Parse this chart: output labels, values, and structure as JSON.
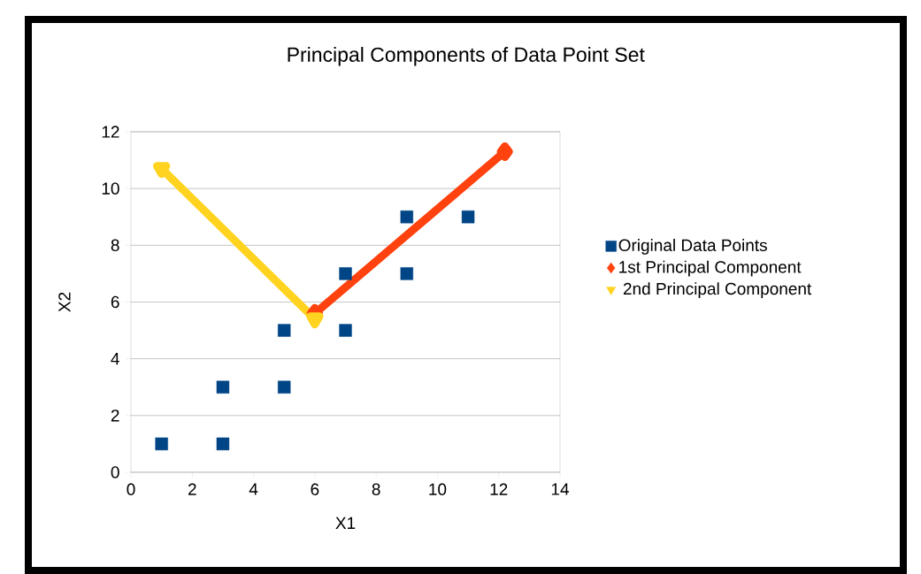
{
  "chart_data": {
    "type": "scatter",
    "title": "Principal Components of Data Point Set",
    "xlabel": "X1",
    "ylabel": "X2",
    "series": [
      {
        "name": "Original Data Points",
        "marker": "square",
        "color": "#004586",
        "x": [
          1,
          3,
          3,
          5,
          5,
          7,
          7,
          9,
          9,
          11
        ],
        "values": [
          1,
          1,
          3,
          3,
          5,
          5,
          7,
          7,
          9,
          9
        ]
      },
      {
        "name": "1st Principal Component",
        "type": "line",
        "marker": "diamond",
        "color": "#ff420e",
        "x": [
          6.0,
          12.2
        ],
        "values": [
          5.6,
          11.3
        ]
      },
      {
        "name": " 2nd Principal Component",
        "type": "line",
        "marker": "triangle",
        "color": "#ffd320",
        "x": [
          1.0,
          6.0
        ],
        "values": [
          10.7,
          5.4
        ]
      }
    ],
    "xlim": [
      0,
      14
    ],
    "xticks": [
      0,
      2,
      4,
      6,
      8,
      10,
      12,
      14
    ],
    "ylim": [
      0,
      12
    ],
    "yticks": [
      0,
      2,
      4,
      6,
      8,
      10,
      12
    ],
    "grid": "y",
    "legend": "right"
  }
}
